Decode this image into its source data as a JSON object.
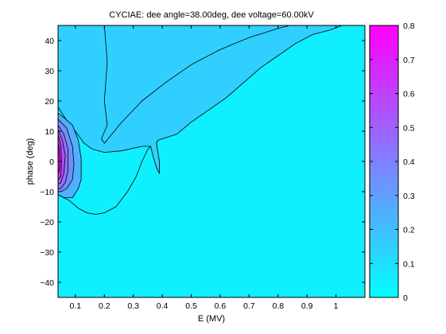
{
  "chart_data": {
    "type": "contour",
    "title": "CYCIAE: dee angle=38.00deg, dee voltage=60.00kV",
    "xlabel": "E (MV)",
    "ylabel": "phase (deg)",
    "xlim": [
      0.04,
      1.1
    ],
    "ylim": [
      -45,
      45
    ],
    "xticks": [
      0.1,
      0.2,
      0.3,
      0.4,
      0.5,
      0.6,
      0.7,
      0.8,
      0.9,
      1
    ],
    "xtick_labels": [
      "0.1",
      "0.2",
      "0.3",
      "0.4",
      "0.5",
      "0.6",
      "0.7",
      "0.8",
      "0.9",
      "1"
    ],
    "yticks": [
      -40,
      -30,
      -20,
      -10,
      0,
      10,
      20,
      30,
      40
    ],
    "ytick_labels": [
      "−40",
      "−30",
      "−20",
      "−10",
      "0",
      "10",
      "20",
      "30",
      "40"
    ],
    "colorbar": {
      "range": [
        0,
        0.8
      ],
      "ticks": [
        0,
        0.1,
        0.2,
        0.3,
        0.4,
        0.5,
        0.6,
        0.7,
        0.8
      ],
      "tick_labels": [
        "0",
        "0.1",
        "0.2",
        "0.3",
        "0.4",
        "0.5",
        "0.6",
        "0.7",
        "0.8"
      ],
      "colormap": "cool",
      "color_low": "#00ffff",
      "color_high": "#ff00ff"
    },
    "levels": [
      {
        "level": 0.1,
        "region": [
          [
            0.04,
            45
          ],
          [
            0.04,
            18
          ],
          [
            0.06,
            15
          ],
          [
            0.08,
            12
          ],
          [
            0.1,
            10
          ],
          [
            0.13,
            6
          ],
          [
            0.16,
            4
          ],
          [
            0.2,
            3
          ],
          [
            0.26,
            3.5
          ],
          [
            0.33,
            5
          ],
          [
            0.36,
            5
          ],
          [
            0.37,
            1
          ],
          [
            0.38,
            -2
          ],
          [
            0.39,
            -4
          ],
          [
            0.39,
            0
          ],
          [
            0.38,
            6
          ],
          [
            0.385,
            7
          ],
          [
            0.45,
            9
          ],
          [
            0.5,
            13
          ],
          [
            0.56,
            17
          ],
          [
            0.62,
            21
          ],
          [
            0.68,
            26
          ],
          [
            0.74,
            31
          ],
          [
            0.8,
            35
          ],
          [
            0.86,
            39
          ],
          [
            0.92,
            42
          ],
          [
            0.98,
            43.5
          ],
          [
            1.02,
            45
          ]
        ],
        "upper_lobe": [
          [
            0.2,
            45
          ],
          [
            0.21,
            33
          ],
          [
            0.2,
            20
          ],
          [
            0.21,
            12
          ],
          [
            0.19,
            7.5
          ],
          [
            0.2,
            6
          ],
          [
            0.26,
            13
          ],
          [
            0.33,
            20
          ],
          [
            0.41,
            26
          ],
          [
            0.5,
            32
          ],
          [
            0.6,
            37
          ],
          [
            0.7,
            41
          ],
          [
            0.8,
            44
          ],
          [
            0.84,
            45
          ]
        ]
      },
      {
        "level": 0.2,
        "region": [
          [
            0.04,
            -11
          ],
          [
            0.04,
            16
          ],
          [
            0.06,
            14.5
          ],
          [
            0.09,
            12
          ],
          [
            0.11,
            7
          ],
          [
            0.12,
            1
          ],
          [
            0.12,
            -6
          ],
          [
            0.11,
            -9
          ],
          [
            0.09,
            -12
          ],
          [
            0.06,
            -12
          ]
        ]
      },
      {
        "level": 0.3,
        "region": [
          [
            0.04,
            -10
          ],
          [
            0.04,
            14
          ],
          [
            0.07,
            11
          ],
          [
            0.09,
            5
          ],
          [
            0.095,
            -1
          ],
          [
            0.09,
            -6
          ],
          [
            0.07,
            -9
          ],
          [
            0.05,
            -10
          ]
        ]
      },
      {
        "level": 0.4,
        "region": [
          [
            0.04,
            -9
          ],
          [
            0.04,
            12
          ],
          [
            0.06,
            9
          ],
          [
            0.075,
            4
          ],
          [
            0.075,
            -3
          ],
          [
            0.065,
            -7
          ],
          [
            0.05,
            -9
          ]
        ]
      },
      {
        "level": 0.5,
        "region": [
          [
            0.04,
            -7.5
          ],
          [
            0.04,
            10.5
          ],
          [
            0.055,
            7
          ],
          [
            0.065,
            2
          ],
          [
            0.06,
            -4
          ],
          [
            0.05,
            -7
          ]
        ]
      },
      {
        "level": 0.6,
        "region": [
          [
            0.04,
            -6
          ],
          [
            0.04,
            9
          ],
          [
            0.05,
            5
          ],
          [
            0.052,
            0
          ],
          [
            0.05,
            -5
          ]
        ]
      },
      {
        "level": 0.7,
        "region": [
          [
            0.04,
            -4
          ],
          [
            0.04,
            6.5
          ],
          [
            0.045,
            3
          ],
          [
            0.046,
            -1
          ],
          [
            0.045,
            -3
          ]
        ]
      }
    ],
    "outer_line": [
      [
        0.04,
        -11
      ],
      [
        0.06,
        -12
      ],
      [
        0.08,
        -13
      ],
      [
        0.11,
        -15.5
      ],
      [
        0.14,
        -17
      ],
      [
        0.17,
        -17.5
      ],
      [
        0.2,
        -17
      ],
      [
        0.24,
        -15
      ],
      [
        0.28,
        -10
      ],
      [
        0.31,
        -5
      ],
      [
        0.33,
        0
      ],
      [
        0.35,
        4
      ],
      [
        0.36,
        5
      ]
    ]
  }
}
